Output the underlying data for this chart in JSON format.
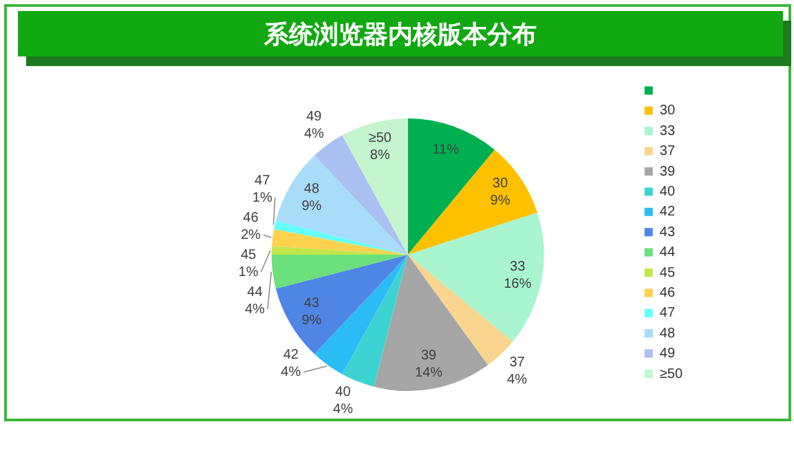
{
  "chart_data": {
    "type": "pie",
    "title": "系统浏览器内核版本分布",
    "categories": [
      null,
      "30",
      "33",
      "37",
      "39",
      "40",
      "42",
      "43",
      "44",
      "45",
      "46",
      "47",
      "48",
      "49",
      "≥50"
    ],
    "values": [
      11,
      9,
      16,
      4,
      14,
      4,
      4,
      9,
      4,
      1,
      2,
      1,
      9,
      4,
      8
    ],
    "value_labels": [
      "11%",
      "9%",
      "16%",
      "4%",
      "14%",
      "4%",
      "4%",
      "9%",
      "4%",
      "1%",
      "2%",
      "1%",
      "9%",
      "4%",
      "8%"
    ],
    "colors": [
      "#00b050",
      "#ffc000",
      "#a9f5cf",
      "#fad590",
      "#a6a6a6",
      "#3ed3d3",
      "#2bbcf5",
      "#4f86e6",
      "#6be07d",
      "#c2e64a",
      "#ffd24d",
      "#66ffff",
      "#a8dcf8",
      "#aac0f0",
      "#c4f5cf"
    ],
    "legend": "right"
  }
}
